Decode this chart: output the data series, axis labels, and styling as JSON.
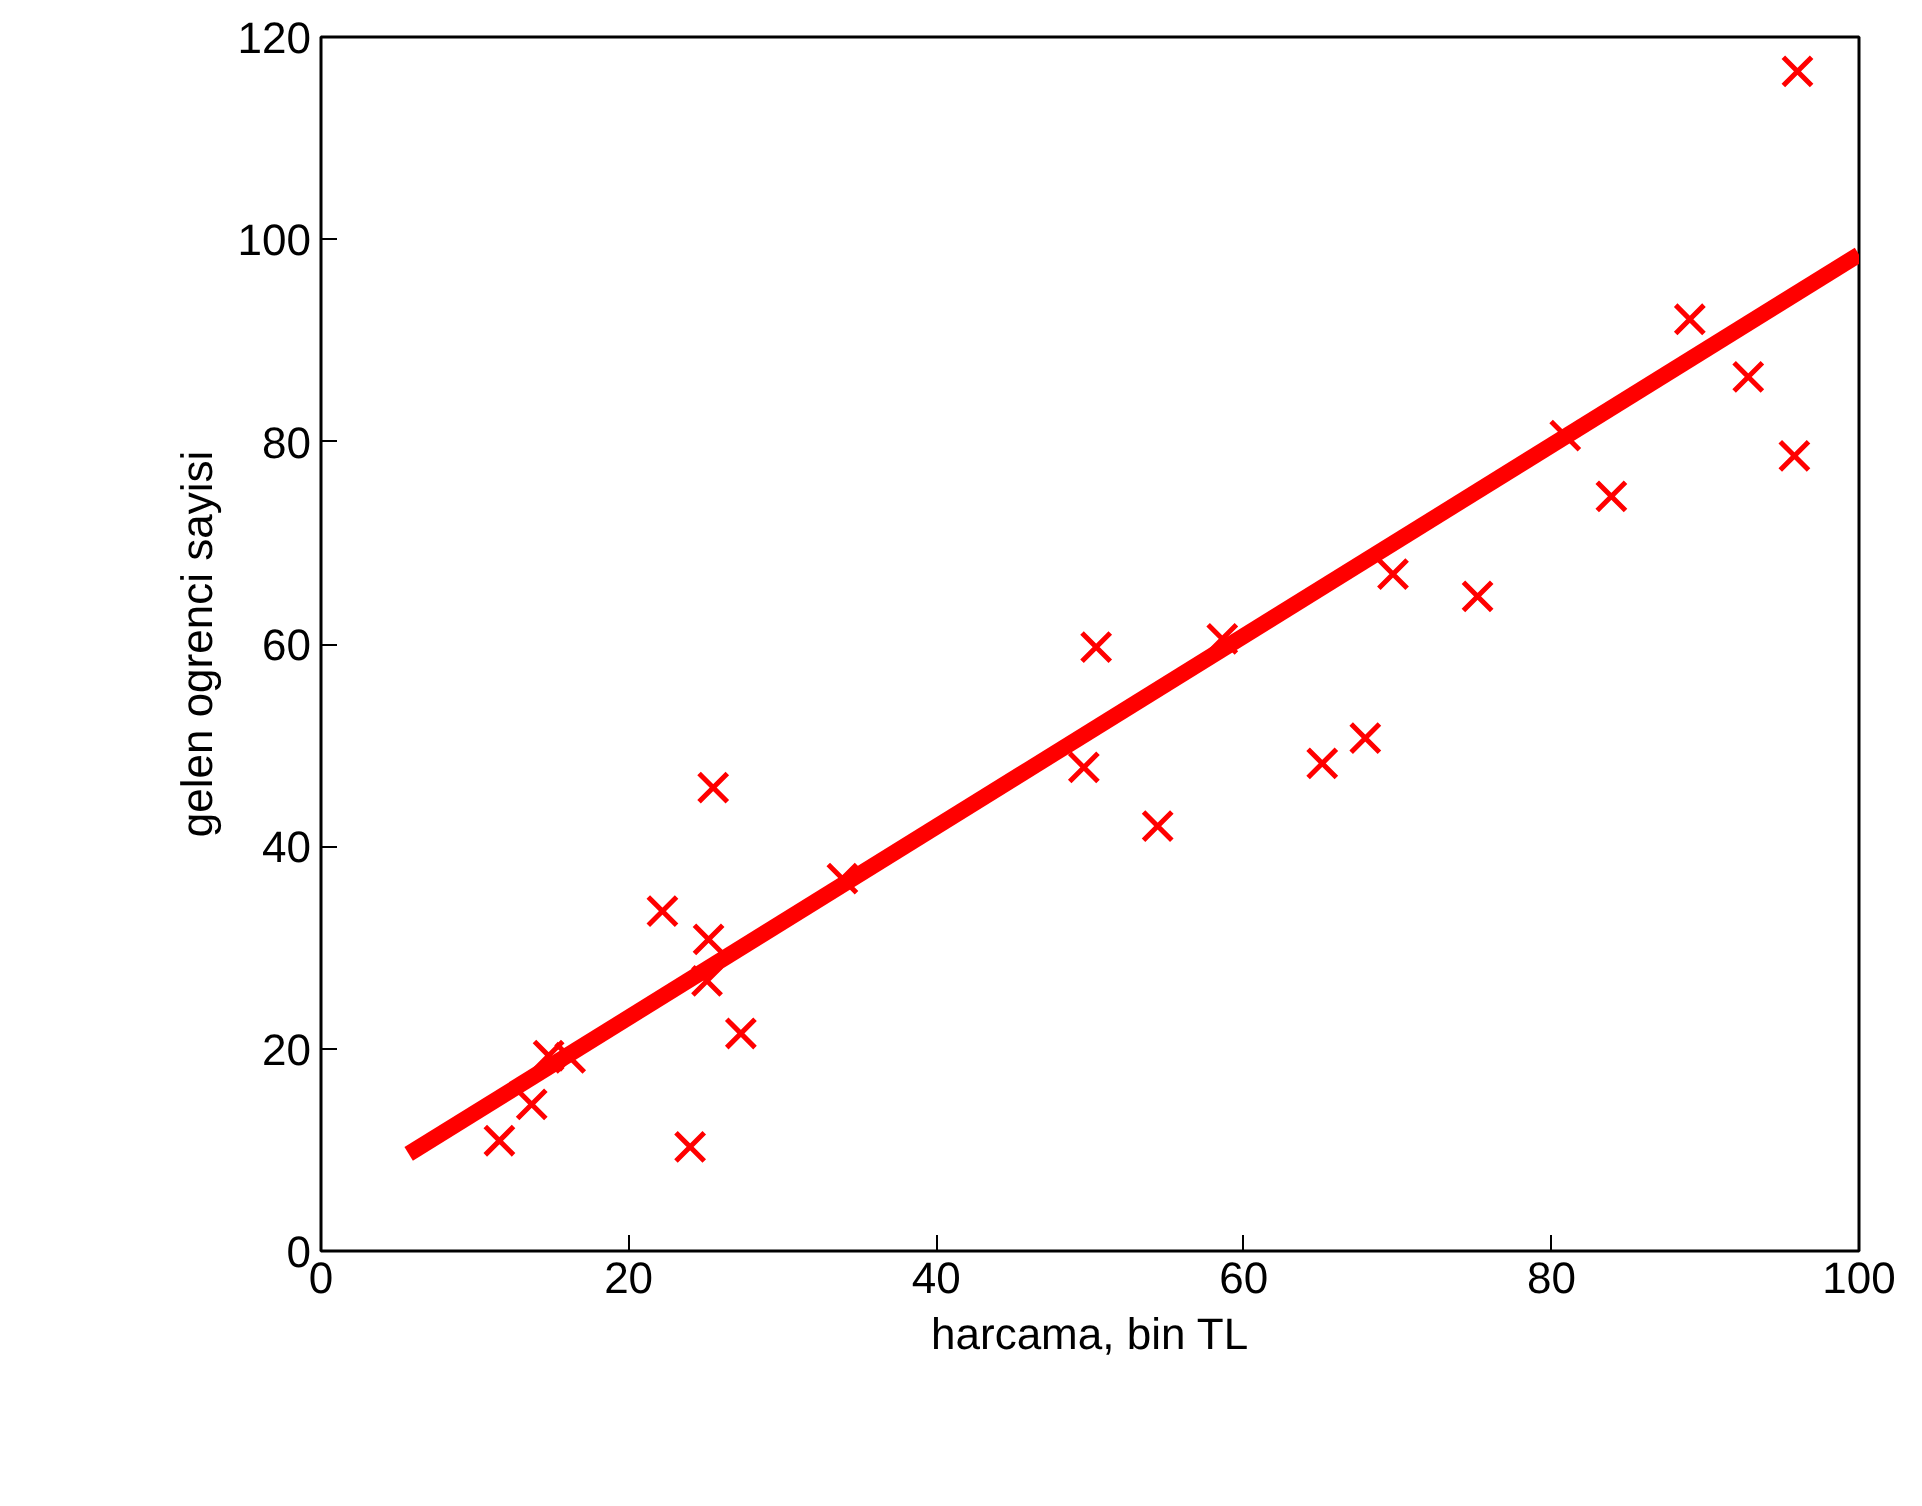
{
  "chart_data": {
    "type": "scatter",
    "xlabel": "harcama, bin TL",
    "ylabel": "gelen ogrenci sayisi",
    "xlim": [
      0,
      100
    ],
    "ylim": [
      0,
      120
    ],
    "xticks": [
      0,
      20,
      40,
      60,
      80,
      100
    ],
    "yticks": [
      0,
      20,
      40,
      60,
      80,
      100,
      120
    ],
    "grid": false,
    "series": [
      {
        "color": "#ff0000",
        "marker": "cross",
        "x": [
          11.6,
          13.7,
          14.8,
          16.2,
          22.2,
          24.0,
          25.1,
          25.2,
          25.5,
          27.3,
          33.9,
          49.6,
          50.4,
          54.4,
          58.6,
          65.1,
          67.9,
          69.7,
          75.2,
          80.9,
          83.9,
          89.0,
          92.8,
          95.8,
          96.0
        ],
        "values": [
          10.9,
          14.5,
          19.3,
          19.1,
          33.6,
          10.3,
          26.7,
          30.8,
          45.8,
          21.5,
          36.8,
          47.8,
          59.7,
          42.0,
          60.5,
          48.2,
          50.7,
          66.9,
          64.7,
          80.6,
          74.6,
          92.1,
          86.4,
          78.6,
          116.6
        ]
      },
      {
        "type": "line",
        "color": "#ff0000",
        "line_style": "solid",
        "x": [
          5.7,
          100
        ],
        "values": [
          9.6,
          98.5
        ]
      }
    ]
  }
}
